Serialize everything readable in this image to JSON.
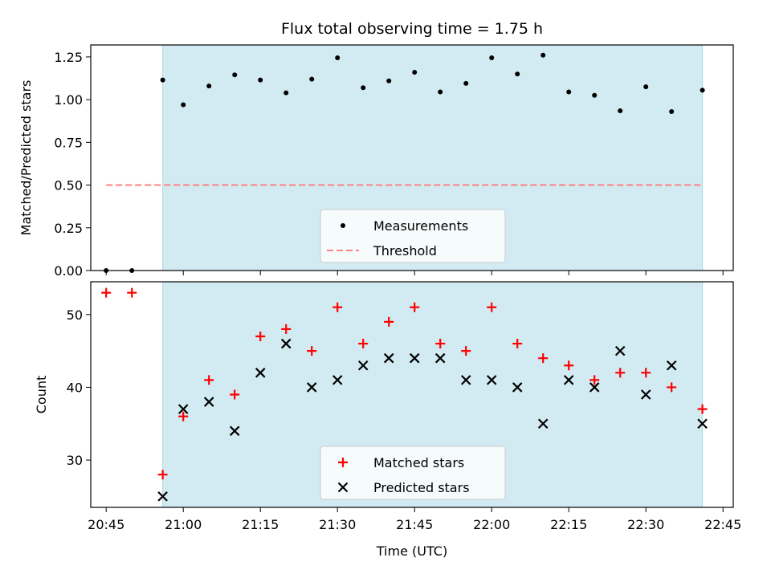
{
  "chart_data": [
    {
      "type": "scatter",
      "title": "Flux total observing time = 1.75 h",
      "xlabel": "",
      "ylabel": "Matched/Predicted stars",
      "ylim": [
        0,
        1.32
      ],
      "yticks": [
        "0.00",
        "0.25",
        "0.50",
        "0.75",
        "1.00",
        "1.25"
      ],
      "ytick_values": [
        0,
        0.25,
        0.5,
        0.75,
        1.0,
        1.25
      ],
      "shaded_span": [
        "20:56",
        "22:41"
      ],
      "shade_color": "#add8e6",
      "legend": "lower center",
      "series": [
        {
          "name": "Measurements",
          "marker": "dot",
          "color": "#000000",
          "x": [
            "20:45",
            "20:50",
            "20:56",
            "21:00",
            "21:05",
            "21:10",
            "21:15",
            "21:20",
            "21:25",
            "21:30",
            "21:35",
            "21:40",
            "21:45",
            "21:50",
            "21:55",
            "22:00",
            "22:05",
            "22:10",
            "22:15",
            "22:20",
            "22:25",
            "22:30",
            "22:35",
            "22:41"
          ],
          "values": [
            0.0,
            0.0,
            1.115,
            0.97,
            1.08,
            1.145,
            1.115,
            1.04,
            1.12,
            1.245,
            1.07,
            1.11,
            1.16,
            1.045,
            1.095,
            1.245,
            1.15,
            1.26,
            1.045,
            1.025,
            0.935,
            1.075,
            0.93,
            1.055
          ]
        },
        {
          "name": "Threshold",
          "marker": "dashed-line",
          "color": "#ff7f7f",
          "x": [
            "20:45",
            "22:41"
          ],
          "values": [
            0.5,
            0.5
          ]
        }
      ]
    },
    {
      "type": "scatter",
      "title": "",
      "xlabel": "Time (UTC)",
      "ylabel": "Count",
      "ylim": [
        23.5,
        54.5
      ],
      "yticks": [
        "30",
        "40",
        "50"
      ],
      "ytick_values": [
        30,
        40,
        50
      ],
      "xticks": [
        "20:45",
        "21:00",
        "21:15",
        "21:30",
        "21:45",
        "22:00",
        "22:15",
        "22:30",
        "22:45"
      ],
      "xlim": [
        "20:42",
        "22:47"
      ],
      "shaded_span": [
        "20:56",
        "22:41"
      ],
      "shade_color": "#add8e6",
      "legend": "lower center",
      "series": [
        {
          "name": "Matched stars",
          "marker": "plus",
          "color": "#ff0000",
          "x": [
            "20:45",
            "20:50",
            "20:56",
            "21:00",
            "21:05",
            "21:10",
            "21:15",
            "21:20",
            "21:25",
            "21:30",
            "21:35",
            "21:40",
            "21:45",
            "21:50",
            "21:55",
            "22:00",
            "22:05",
            "22:10",
            "22:15",
            "22:20",
            "22:25",
            "22:30",
            "22:35",
            "22:41"
          ],
          "values": [
            53,
            53,
            28,
            36,
            41,
            39,
            47,
            48,
            45,
            51,
            46,
            49,
            51,
            46,
            45,
            51,
            46,
            44,
            43,
            41,
            42,
            42,
            40,
            37
          ]
        },
        {
          "name": "Predicted stars",
          "marker": "x",
          "color": "#000000",
          "x": [
            "20:56",
            "21:00",
            "21:05",
            "21:10",
            "21:15",
            "21:20",
            "21:25",
            "21:30",
            "21:35",
            "21:40",
            "21:45",
            "21:50",
            "21:55",
            "22:00",
            "22:05",
            "22:10",
            "22:15",
            "22:20",
            "22:25",
            "22:30",
            "22:35",
            "22:41"
          ],
          "values": [
            25,
            37,
            38,
            34,
            42,
            46,
            40,
            41,
            43,
            44,
            44,
            44,
            41,
            41,
            40,
            35,
            41,
            40,
            45,
            39,
            43,
            35
          ]
        }
      ]
    }
  ]
}
